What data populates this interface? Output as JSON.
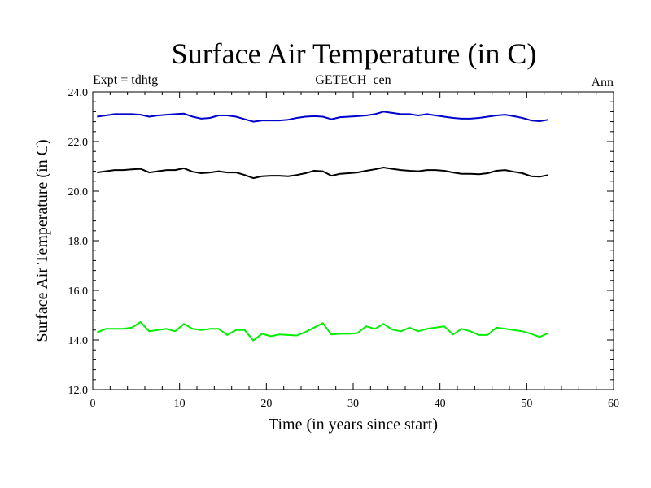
{
  "chart_data": {
    "type": "line",
    "title": "Surface Air Temperature (in C)",
    "subtitle_left": "Expt = tdhtg",
    "subtitle_center": "GETECH_cen",
    "subtitle_right": "Ann",
    "xlabel": "Time (in years since start)",
    "ylabel": "Surface Air Temperature (in C)",
    "xlim": [
      0,
      60
    ],
    "ylim": [
      12.0,
      24.0
    ],
    "x_ticks": [
      0,
      10,
      20,
      30,
      40,
      50,
      60
    ],
    "x_tick_labels": [
      "0",
      "10",
      "20",
      "30",
      "40",
      "50",
      "60"
    ],
    "y_ticks": [
      12,
      14,
      16,
      18,
      20,
      22,
      24
    ],
    "y_tick_labels": [
      "12.0",
      "14.0",
      "16.0",
      "18.0",
      "20.0",
      "22.0",
      "24.0"
    ],
    "grid": false,
    "x": [
      0.5,
      1.5,
      2.5,
      3.5,
      4.5,
      5.5,
      6.5,
      7.5,
      8.5,
      9.5,
      10.5,
      11.5,
      12.5,
      13.5,
      14.5,
      15.5,
      16.5,
      17.5,
      18.5,
      19.5,
      20.5,
      21.5,
      22.5,
      23.5,
      24.5,
      25.5,
      26.5,
      27.5,
      28.5,
      29.5,
      30.5,
      31.5,
      32.5,
      33.5,
      34.5,
      35.5,
      36.5,
      37.5,
      38.5,
      39.5,
      40.5,
      41.5,
      42.5,
      43.5,
      44.5,
      45.5,
      46.5,
      47.5,
      48.5,
      49.5,
      50.5,
      51.5,
      52.5
    ],
    "series": [
      {
        "name": "blue",
        "color": "#0000cc",
        "values": [
          23.0,
          23.05,
          23.1,
          23.1,
          23.1,
          23.08,
          23.0,
          23.05,
          23.08,
          23.1,
          23.12,
          23.0,
          22.92,
          22.95,
          23.05,
          23.05,
          23.0,
          22.9,
          22.8,
          22.85,
          22.85,
          22.85,
          22.88,
          22.95,
          23.0,
          23.02,
          23.0,
          22.9,
          22.98,
          23.0,
          23.02,
          23.05,
          23.1,
          23.2,
          23.15,
          23.1,
          23.1,
          23.05,
          23.1,
          23.05,
          23.0,
          22.95,
          22.92,
          22.92,
          22.95,
          23.0,
          23.05,
          23.08,
          23.02,
          22.95,
          22.85,
          22.82,
          22.88
        ]
      },
      {
        "name": "black",
        "color": "#000000",
        "values": [
          20.75,
          20.8,
          20.85,
          20.85,
          20.88,
          20.9,
          20.75,
          20.8,
          20.85,
          20.85,
          20.92,
          20.78,
          20.72,
          20.75,
          20.8,
          20.75,
          20.75,
          20.65,
          20.52,
          20.6,
          20.62,
          20.62,
          20.6,
          20.65,
          20.72,
          20.82,
          20.8,
          20.62,
          20.7,
          20.72,
          20.75,
          20.82,
          20.88,
          20.95,
          20.9,
          20.85,
          20.82,
          20.8,
          20.85,
          20.85,
          20.82,
          20.75,
          20.7,
          20.7,
          20.68,
          20.72,
          20.82,
          20.85,
          20.78,
          20.72,
          20.6,
          20.58,
          20.65
        ]
      },
      {
        "name": "green",
        "color": "#00ee00",
        "values": [
          14.3,
          14.45,
          14.45,
          14.45,
          14.5,
          14.72,
          14.35,
          14.4,
          14.45,
          14.35,
          14.65,
          14.45,
          14.4,
          14.45,
          14.45,
          14.2,
          14.4,
          14.4,
          13.98,
          14.25,
          14.15,
          14.22,
          14.2,
          14.18,
          14.32,
          14.5,
          14.68,
          14.22,
          14.25,
          14.25,
          14.28,
          14.55,
          14.45,
          14.65,
          14.42,
          14.35,
          14.5,
          14.35,
          14.45,
          14.5,
          14.55,
          14.22,
          14.45,
          14.35,
          14.2,
          14.2,
          14.5,
          14.45,
          14.4,
          14.35,
          14.25,
          14.12,
          14.28
        ]
      }
    ]
  }
}
